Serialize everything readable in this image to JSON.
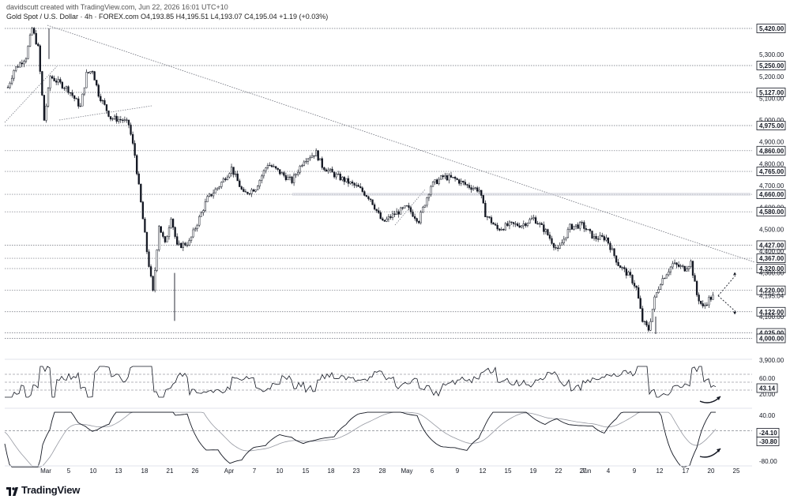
{
  "header": {
    "attribution": "davidscutt created with TradingView.com, Jun 22, 2026 16:01 UTC+10",
    "symbol_line": "Gold Spot / U.S. Dollar · 4h · FOREX.com   O4,193.85  H4,195.51  L4,193.07  C4,195.04  +1.19 (+0.03%)"
  },
  "branding": {
    "logo_text": "TradingView"
  },
  "chart_data": [
    {
      "type": "candlestick",
      "title": "Gold Spot / U.S. Dollar · 4h · FOREX.com",
      "ylim": [
        3900,
        5450
      ],
      "y_ticks": [
        "5,420.00",
        "5,300.00",
        "5,250.00",
        "5,200.00",
        "5,127.00",
        "5,100.00",
        "5,000.00",
        "4,975.00",
        "4,900.00",
        "4,860.00",
        "4,800.00",
        "4,765.00",
        "4,700.00",
        "4,660.00",
        "4,600.00",
        "4,580.00",
        "4,500.00",
        "4,427.00",
        "4,400.00",
        "4,367.00",
        "4,320.00",
        "4,300.00",
        "4,220.00",
        "4,195.04",
        "4,122.00",
        "4,100.00",
        "4,025.00",
        "4,000.00",
        "3,900.00"
      ],
      "x_ticks": [
        "Mar",
        "5",
        "10",
        "13",
        "18",
        "21",
        "26",
        "Apr",
        "7",
        "10",
        "15",
        "18",
        "23",
        "28",
        "May",
        "6",
        "9",
        "12",
        "15",
        "19",
        "22",
        "27",
        "Jun",
        "4",
        "9",
        "12",
        "17",
        "20",
        "25"
      ],
      "horizontal_levels": [
        5420,
        5250,
        5127,
        4975,
        4860,
        4765,
        4660,
        4580,
        4427,
        4367,
        4320,
        4220,
        4122,
        4025,
        4000
      ],
      "current_price": 4195.04,
      "ohlc_last": {
        "open": 4193.85,
        "high": 4195.51,
        "low": 4193.07,
        "close": 4195.04,
        "change": 1.19,
        "change_pct": 0.03
      },
      "path": [
        [
          "Feb 25",
          5150
        ],
        [
          "Feb 26",
          5230
        ],
        [
          "Feb 27",
          5260
        ],
        [
          "Feb 28",
          5290
        ],
        [
          "Mar 1",
          5420
        ],
        [
          "Mar 2",
          5330
        ],
        [
          "Mar 3",
          5000
        ],
        [
          "Mar 4",
          5200
        ],
        [
          "Mar 5",
          5180
        ],
        [
          "Mar 7",
          5140
        ],
        [
          "Mar 9",
          5060
        ],
        [
          "Mar 10",
          5210
        ],
        [
          "Mar 11",
          5230
        ],
        [
          "Mar 12",
          5120
        ],
        [
          "Mar 14",
          5010
        ],
        [
          "Mar 16",
          5000
        ],
        [
          "Mar 17",
          4980
        ],
        [
          "Mar 18",
          4840
        ],
        [
          "Mar 19",
          4620
        ],
        [
          "Mar 20",
          4400
        ],
        [
          "Mar 21",
          4210
        ],
        [
          "Mar 22",
          4520
        ],
        [
          "Mar 23",
          4430
        ],
        [
          "Mar 24",
          4560
        ],
        [
          "Mar 25",
          4420
        ],
        [
          "Mar 27",
          4440
        ],
        [
          "Mar 30",
          4640
        ],
        [
          "Apr 1",
          4700
        ],
        [
          "Apr 3",
          4780
        ],
        [
          "Apr 5",
          4660
        ],
        [
          "Apr 7",
          4690
        ],
        [
          "Apr 9",
          4800
        ],
        [
          "Apr 11",
          4760
        ],
        [
          "Apr 13",
          4720
        ],
        [
          "Apr 15",
          4820
        ],
        [
          "Apr 17",
          4850
        ],
        [
          "Apr 18",
          4790
        ],
        [
          "Apr 20",
          4750
        ],
        [
          "Apr 22",
          4720
        ],
        [
          "Apr 24",
          4690
        ],
        [
          "Apr 26",
          4640
        ],
        [
          "Apr 28",
          4530
        ],
        [
          "Apr 30",
          4570
        ],
        [
          "May 2",
          4600
        ],
        [
          "May 4",
          4540
        ],
        [
          "May 6",
          4700
        ],
        [
          "May 8",
          4740
        ],
        [
          "May 10",
          4730
        ],
        [
          "May 12",
          4700
        ],
        [
          "May 14",
          4680
        ],
        [
          "May 15",
          4570
        ],
        [
          "May 17",
          4500
        ],
        [
          "May 19",
          4520
        ],
        [
          "May 21",
          4520
        ],
        [
          "May 23",
          4550
        ],
        [
          "May 25",
          4490
        ],
        [
          "May 27",
          4400
        ],
        [
          "May 29",
          4510
        ],
        [
          "May 31",
          4520
        ],
        [
          "Jun 2",
          4460
        ],
        [
          "Jun 4",
          4460
        ],
        [
          "Jun 6",
          4340
        ],
        [
          "Jun 8",
          4280
        ],
        [
          "Jun 9",
          4230
        ],
        [
          "Jun 10",
          4080
        ],
        [
          "Jun 11",
          4040
        ],
        [
          "Jun 12",
          4180
        ],
        [
          "Jun 13",
          4260
        ],
        [
          "Jun 15",
          4340
        ],
        [
          "Jun 17",
          4320
        ],
        [
          "Jun 18",
          4350
        ],
        [
          "Jun 19",
          4200
        ],
        [
          "Jun 20",
          4140
        ],
        [
          "Jun 21",
          4180
        ],
        [
          "Jun 22",
          4195
        ]
      ],
      "projection": {
        "from": [
          "Jun 22",
          4195
        ],
        "up_target": 4300,
        "down_target": 4120
      }
    },
    {
      "type": "line",
      "indicator": "RSI",
      "ylim": [
        0,
        100
      ],
      "y_ticks": [
        "60.00",
        "20.00"
      ],
      "levels": [
        70,
        50,
        30
      ],
      "last_value": "43.14"
    },
    {
      "type": "line",
      "indicator": "MACD",
      "ylim": [
        -100,
        60
      ],
      "y_ticks": [
        "40.00",
        "0.00",
        "-80.00"
      ],
      "last_values": [
        "-24.10",
        "-30.80"
      ]
    }
  ]
}
